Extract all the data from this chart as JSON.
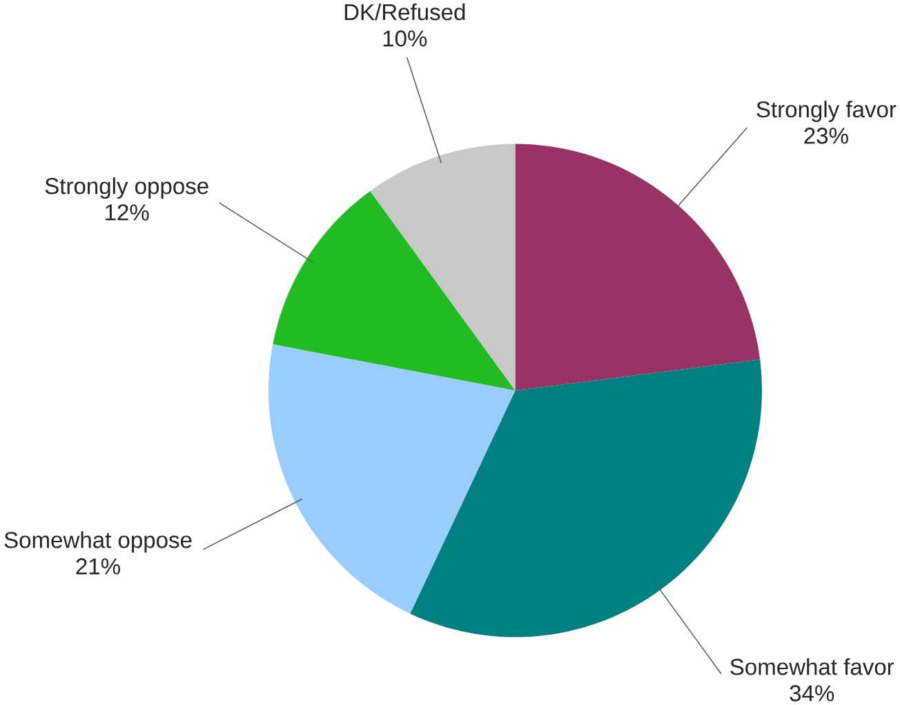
{
  "chart_data": {
    "type": "pie",
    "categories": [
      "Strongly favor",
      "Somewhat favor",
      "Somewhat oppose",
      "Strongly oppose",
      "DK/Refused"
    ],
    "values": [
      23,
      34,
      21,
      12,
      10
    ],
    "value_labels": [
      "23%",
      "34%",
      "21%",
      "12%",
      "10%"
    ],
    "colors": [
      "#993366",
      "#008080",
      "#99ccff",
      "#22bb22",
      "#c8c8c8"
    ]
  }
}
